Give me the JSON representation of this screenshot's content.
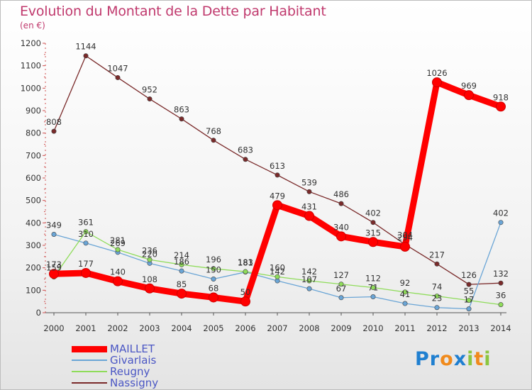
{
  "header": {
    "title": "Evolution du Montant de la Dette par Habitant",
    "subtitle": "(en €)"
  },
  "chart_data": {
    "type": "line",
    "title": "Evolution du Montant de la Dette par Habitant",
    "subtitle": "(en €)",
    "xlabel": "",
    "ylabel": "",
    "x": [
      "2000",
      "2001",
      "2002",
      "2003",
      "2004",
      "2005",
      "2006",
      "2007",
      "2008",
      "2009",
      "2010",
      "2011",
      "2012",
      "2013",
      "2014"
    ],
    "yticks": [
      0,
      100,
      200,
      300,
      400,
      500,
      600,
      700,
      800,
      900,
      1000,
      1100,
      1200
    ],
    "ylim": [
      0,
      1200
    ],
    "grid": false,
    "legend_position": "bottom-left",
    "series": [
      {
        "name": "MAILLET",
        "color": "#ff0000",
        "values": [
          173,
          177,
          140,
          108,
          85,
          68,
          50,
          479,
          431,
          340,
          315,
          294,
          1026,
          969,
          918
        ]
      },
      {
        "name": "Givarlais",
        "color": "#6aa5d6",
        "values": [
          349,
          310,
          269,
          220,
          186,
          150,
          181,
          142,
          107,
          67,
          71,
          41,
          23,
          17,
          402
        ]
      },
      {
        "name": "Reugny",
        "color": "#8fdc5a",
        "values": [
          159,
          361,
          281,
          236,
          214,
          196,
          183,
          160,
          142,
          127,
          112,
          92,
          74,
          55,
          36
        ]
      },
      {
        "name": "Nassigny",
        "color": "#7a2a2a",
        "values": [
          808,
          1144,
          1047,
          952,
          863,
          768,
          683,
          613,
          539,
          486,
          402,
          304,
          217,
          126,
          132
        ]
      }
    ]
  },
  "logo": {
    "text": "Proxiti",
    "letters": [
      {
        "ch": "P",
        "color": "#1f7fd0"
      },
      {
        "ch": "r",
        "color": "#1f7fd0"
      },
      {
        "ch": "o",
        "color": "#f08a1c"
      },
      {
        "ch": "x",
        "color": "#1f7fd0"
      },
      {
        "ch": "i",
        "color": "#8cc63f"
      },
      {
        "ch": "t",
        "color": "#f08a1c"
      },
      {
        "ch": "i",
        "color": "#8cc63f"
      }
    ]
  }
}
